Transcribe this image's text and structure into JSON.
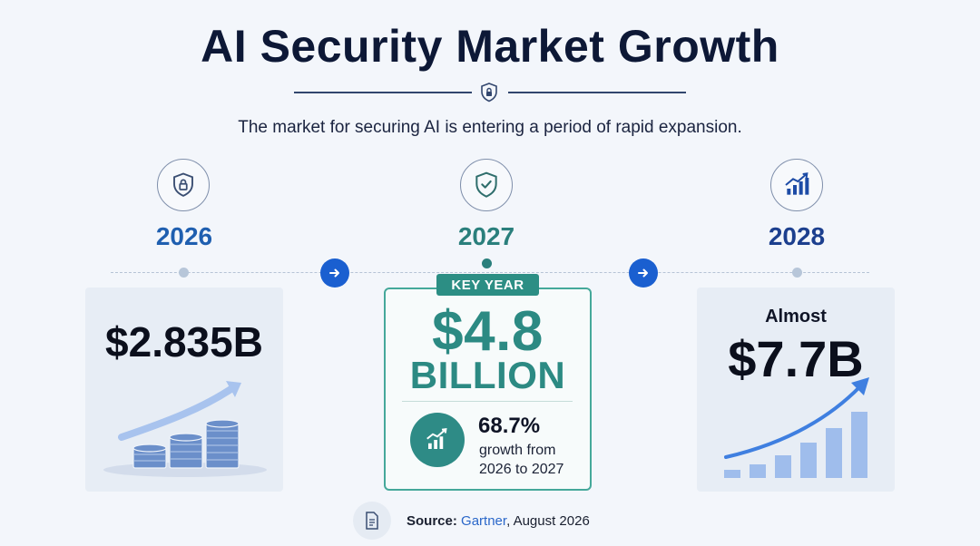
{
  "header": {
    "title": "AI Security Market Growth",
    "subtitle": "The market for securing AI is entering a period of rapid expansion."
  },
  "timeline": [
    {
      "year": "2026",
      "value": "$2.835B",
      "icon": "shield-lock-icon"
    },
    {
      "year": "2027",
      "badge": "KEY YEAR",
      "value_main": "$4.8",
      "value_unit": "BILLION",
      "growth_pct": "68.7%",
      "growth_line1": "growth from",
      "growth_line2": "2026 to 2027",
      "icon": "shield-check-icon"
    },
    {
      "year": "2028",
      "prefix": "Almost",
      "value": "$7.7B",
      "icon": "bar-chart-growth-icon"
    }
  ],
  "source": {
    "label": "Source:",
    "name": "Gartner",
    "date": ", August 2026"
  },
  "colors": {
    "navy": "#0d1836",
    "blue": "#1a5fd0",
    "teal": "#2c8a83",
    "year_2026": "#1f5fb0",
    "year_2027": "#2a7f7c",
    "year_2028": "#1c3f8e"
  }
}
